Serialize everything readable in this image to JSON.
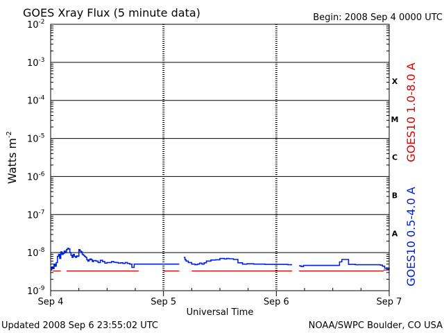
{
  "header": {
    "title": "GOES Xray Flux (5 minute data)",
    "begin": "Begin:  2008 Sep 4 0000 UTC"
  },
  "footer": {
    "updated": "Updated 2008 Sep  6 23:55:02 UTC",
    "credit": "NOAA/SWPC Boulder, CO USA"
  },
  "colors": {
    "long_channel": "#e00000",
    "short_channel": "#0020e0",
    "axes": "#000000",
    "background": "#ffffff"
  },
  "chart_data": {
    "type": "line",
    "title": "GOES Xray Flux (5 minute data)",
    "xlabel": "Universal Time",
    "ylabel": "Watts m",
    "ylabel_superscript": "-2",
    "yscale": "log",
    "ylim": [
      1e-09,
      0.01
    ],
    "xlim_days": [
      0,
      3
    ],
    "grid": "horizontal lines at each decade; dashed vertical day marks",
    "x_ticks": [
      "Sep 4",
      "Sep 5",
      "Sep 6",
      "Sep 7"
    ],
    "y_ticks": [
      {
        "base": "10",
        "exp": "-9",
        "value": 1e-09
      },
      {
        "base": "10",
        "exp": "-8",
        "value": 1e-08
      },
      {
        "base": "10",
        "exp": "-7",
        "value": 1e-07
      },
      {
        "base": "10",
        "exp": "-6",
        "value": 1e-06
      },
      {
        "base": "10",
        "exp": "-5",
        "value": 1e-05
      },
      {
        "base": "10",
        "exp": "-4",
        "value": 0.0001
      },
      {
        "base": "10",
        "exp": "-3",
        "value": 0.001
      },
      {
        "base": "10",
        "exp": "-2",
        "value": 0.01
      }
    ],
    "flare_classes": [
      {
        "label": "X",
        "value": 0.00032
      },
      {
        "label": "M",
        "value": 3.2e-05
      },
      {
        "label": "C",
        "value": 3.2e-06
      },
      {
        "label": "B",
        "value": 3.2e-07
      },
      {
        "label": "A",
        "value": 3.2e-08
      }
    ],
    "series": [
      {
        "name": "GOES10 1.0-8.0 A",
        "color": "#e00000",
        "segments": [
          {
            "x": [
              0.02,
              0.09
            ],
            "y": [
              3.3e-09,
              3.3e-09
            ]
          },
          {
            "x": [
              0.14,
              0.78
            ],
            "y": [
              3.3e-09,
              3.3e-09
            ]
          },
          {
            "x": [
              1.0,
              1.14
            ],
            "y": [
              3.3e-09,
              3.3e-09
            ]
          },
          {
            "x": [
              1.25,
              1.4
            ],
            "y": [
              3.3e-09,
              3.3e-09
            ]
          },
          {
            "x": [
              1.4,
              2.14
            ],
            "y": [
              3.3e-09,
              3.3e-09
            ]
          },
          {
            "x": [
              2.2,
              2.95
            ],
            "y": [
              3.3e-09,
              3.3e-09
            ]
          },
          {
            "x": [
              2.95,
              3.0
            ],
            "y": [
              3.5e-09,
              3.5e-09
            ]
          }
        ]
      },
      {
        "name": "GOES10 0.5-4.0 A",
        "color": "#0020e0",
        "segments": [
          {
            "x": [
              0.0,
              0.01,
              0.02,
              0.03,
              0.04,
              0.05,
              0.06,
              0.07,
              0.08,
              0.09,
              0.1,
              0.11,
              0.12,
              0.13,
              0.14,
              0.15,
              0.16,
              0.17,
              0.18,
              0.19,
              0.2,
              0.21,
              0.22,
              0.23,
              0.24,
              0.25,
              0.26,
              0.27,
              0.28,
              0.29,
              0.3,
              0.31,
              0.32,
              0.33,
              0.34,
              0.35,
              0.36,
              0.37,
              0.38,
              0.4,
              0.42,
              0.44,
              0.46,
              0.48,
              0.5,
              0.52,
              0.54,
              0.56,
              0.58,
              0.6,
              0.62,
              0.64,
              0.66,
              0.68,
              0.7,
              0.72,
              0.74,
              0.76,
              0.78,
              0.8,
              0.9,
              1.0,
              1.05,
              1.1,
              1.14
            ],
            "y": [
              3.5e-09,
              4.2e-09,
              3.8e-09,
              5e-09,
              4.4e-09,
              5.5e-09,
              8e-09,
              9e-09,
              7e-09,
              1.05e-08,
              9e-09,
              9.5e-09,
              1.1e-08,
              1e-08,
              1.2e-08,
              1.3e-08,
              1.25e-08,
              1e-08,
              8.5e-09,
              7.5e-09,
              9e-09,
              8e-09,
              7.5e-09,
              8.2e-09,
              8e-09,
              1.2e-08,
              1.1e-08,
              1.05e-08,
              9e-09,
              8.5e-09,
              8e-09,
              7.5e-09,
              6.5e-09,
              6e-09,
              6.5e-09,
              6.8e-09,
              6.5e-09,
              5.8e-09,
              6.2e-09,
              6e-09,
              5.5e-09,
              6.3e-09,
              5.8e-09,
              5.3e-09,
              5.5e-09,
              5.5e-09,
              5.8e-09,
              5.6e-09,
              5.5e-09,
              5.3e-09,
              5.4e-09,
              5.2e-09,
              5.5e-09,
              5.2e-09,
              5e-09,
              4.1e-09,
              5e-09,
              5e-09,
              5e-09,
              5e-09,
              5e-09,
              5e-09,
              5e-09,
              5e-09,
              5e-09
            ]
          },
          {
            "x": [
              1.18,
              1.19,
              1.2,
              1.22,
              1.25,
              1.28,
              1.3,
              1.32,
              1.34,
              1.36,
              1.38,
              1.42,
              1.46,
              1.5,
              1.54,
              1.56,
              1.58,
              1.6,
              1.62,
              1.66,
              1.7,
              1.74,
              1.8,
              1.9,
              2.0,
              2.06,
              2.1,
              2.14
            ],
            "y": [
              7.5e-09,
              6.5e-09,
              6e-09,
              5.5e-09,
              5e-09,
              4.8e-09,
              5e-09,
              5.3e-09,
              5e-09,
              5.4e-09,
              6e-09,
              6.4e-09,
              6.5e-09,
              7e-09,
              6.8e-09,
              7e-09,
              6.9e-09,
              6.9e-09,
              6.6e-09,
              5.4e-09,
              5e-09,
              5.1e-09,
              5e-09,
              4.9e-09,
              4.9e-09,
              4.9e-09,
              4.8e-09,
              4.8e-09
            ]
          },
          {
            "x": [
              2.2,
              2.22,
              2.24,
              2.26,
              2.28,
              2.4,
              2.5,
              2.55,
              2.56,
              2.58,
              2.6,
              2.62,
              2.64,
              2.7,
              2.8,
              2.88,
              2.92,
              2.94,
              2.96,
              2.98,
              3.0
            ],
            "y": [
              4.5e-09,
              4.3e-09,
              4.6e-09,
              4.6e-09,
              4.6e-09,
              4.6e-09,
              4.6e-09,
              4.6e-09,
              5.7e-09,
              6.6e-09,
              6.6e-09,
              6.6e-09,
              4.9e-09,
              4.8e-09,
              4.8e-09,
              4.8e-09,
              4.7e-09,
              4.4e-09,
              3.9e-09,
              3.7e-09,
              4e-09
            ]
          }
        ]
      }
    ]
  }
}
